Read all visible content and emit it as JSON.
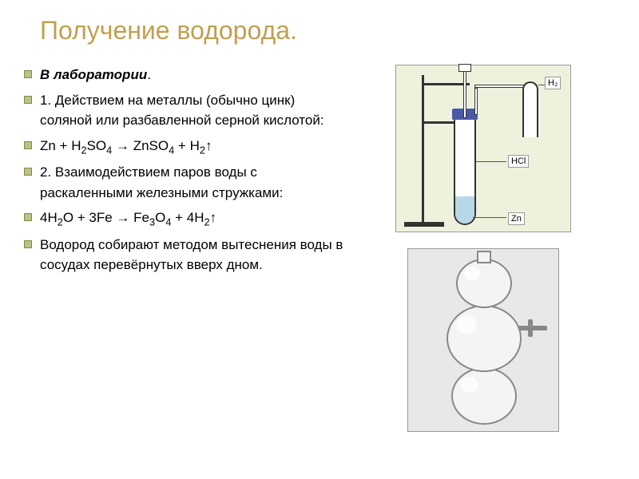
{
  "title_color": "#c0a050",
  "marker_color": "#b8c28a",
  "title": "Получение водорода.",
  "bullets": [
    {
      "html": "<span class='em'>В лаборатории</span>."
    },
    {
      "html": "1. Действием на металлы (обычно цинк) соляной или разбавленной серной кислотой:"
    },
    {
      "html": "Zn + H<span class='sub'>2</span>SO<span class='sub'>4</span> → ZnSO<span class='sub'>4</span> + H<span class='sub'>2</span>↑"
    },
    {
      "html": "2. Взаимодействием паров воды с раскаленными железными стружками:"
    },
    {
      "html": "4H<span class='sub'>2</span>O + 3Fe → Fe<span class='sub'>3</span>O<span class='sub'>4</span> + 4H<span class='sub'>2</span>↑"
    },
    {
      "html": "Водород собирают методом вытеснения воды в сосудах перевёрнутых вверх дном."
    }
  ],
  "labels": {
    "h2": "H₂",
    "hcl": "HCl",
    "zn": "Zn"
  }
}
